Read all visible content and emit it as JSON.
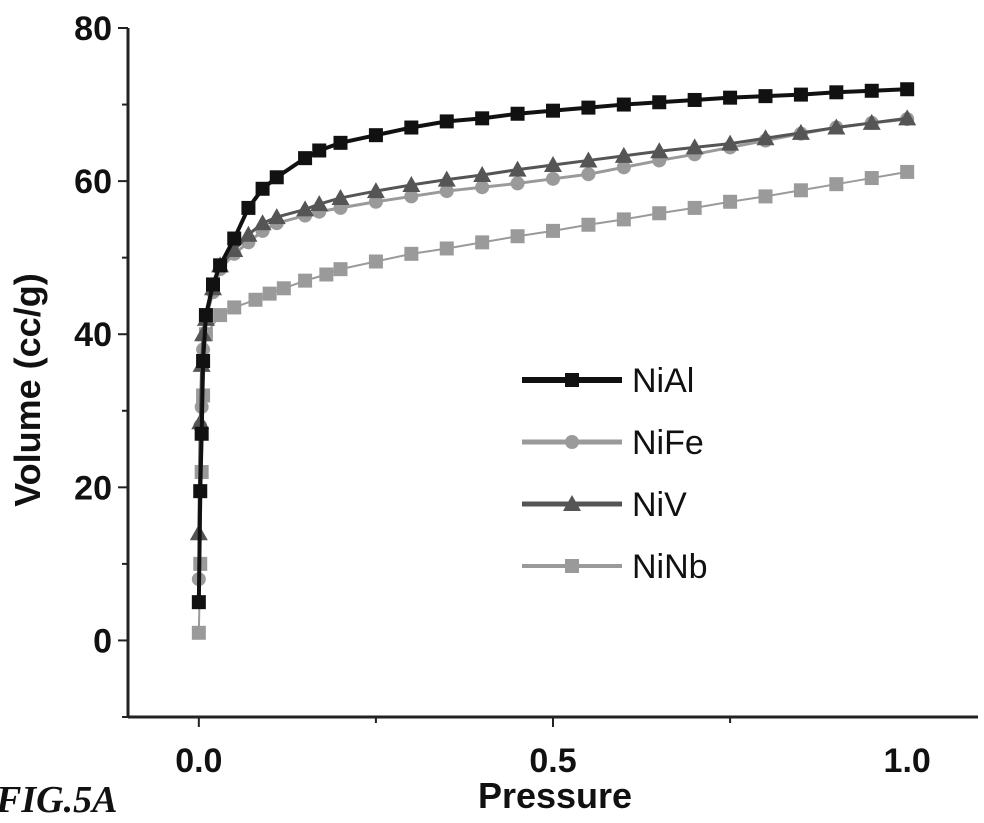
{
  "figure_label": "FIG.5A",
  "chart_data": {
    "type": "line",
    "title": "",
    "xlabel": "Pressure",
    "ylabel": "Volume (cc/g)",
    "xlim": [
      -0.1,
      1.1
    ],
    "ylim": [
      -10,
      80
    ],
    "xticks": [
      0.0,
      0.5,
      1.0
    ],
    "xtick_labels": [
      "0.0",
      "0.5",
      "1.0"
    ],
    "yticks": [
      0,
      20,
      40,
      60,
      80
    ],
    "ytick_labels": [
      "0",
      "20",
      "40",
      "60",
      "80"
    ],
    "grid": false,
    "legend_position": "center-right",
    "series": [
      {
        "name": "NiAl",
        "marker": "square",
        "color": "#111111",
        "line_width": 4,
        "x": [
          0.0,
          0.002,
          0.004,
          0.006,
          0.01,
          0.02,
          0.03,
          0.05,
          0.07,
          0.09,
          0.11,
          0.15,
          0.17,
          0.2,
          0.25,
          0.3,
          0.35,
          0.4,
          0.45,
          0.5,
          0.55,
          0.6,
          0.65,
          0.7,
          0.75,
          0.8,
          0.85,
          0.9,
          0.95,
          1.0
        ],
        "y": [
          5.0,
          19.5,
          27.0,
          36.5,
          42.5,
          46.5,
          49.0,
          52.5,
          56.5,
          59.0,
          60.5,
          63.0,
          64.0,
          65.0,
          66.0,
          67.0,
          67.8,
          68.2,
          68.8,
          69.2,
          69.6,
          70.0,
          70.3,
          70.6,
          70.9,
          71.1,
          71.3,
          71.6,
          71.8,
          72.0
        ]
      },
      {
        "name": "NiFe",
        "marker": "circle",
        "color": "#9a9a9a",
        "line_width": 3,
        "x": [
          0.0,
          0.002,
          0.004,
          0.006,
          0.01,
          0.02,
          0.03,
          0.05,
          0.07,
          0.09,
          0.11,
          0.15,
          0.17,
          0.2,
          0.25,
          0.3,
          0.35,
          0.4,
          0.45,
          0.5,
          0.55,
          0.6,
          0.65,
          0.7,
          0.75,
          0.8,
          0.85,
          0.9,
          0.95,
          1.0
        ],
        "y": [
          8.0,
          28.0,
          30.5,
          38.0,
          42.0,
          45.5,
          48.5,
          50.5,
          52.0,
          53.5,
          54.5,
          55.5,
          56.0,
          56.5,
          57.3,
          58.0,
          58.7,
          59.2,
          59.7,
          60.3,
          60.9,
          61.8,
          62.7,
          63.5,
          64.4,
          65.3,
          66.2,
          67.0,
          67.6,
          68.1
        ]
      },
      {
        "name": "NiV",
        "marker": "triangle",
        "color": "#555555",
        "line_width": 3,
        "x": [
          0.0,
          0.002,
          0.004,
          0.006,
          0.01,
          0.02,
          0.03,
          0.05,
          0.07,
          0.09,
          0.11,
          0.15,
          0.17,
          0.2,
          0.25,
          0.3,
          0.35,
          0.4,
          0.45,
          0.5,
          0.55,
          0.6,
          0.65,
          0.7,
          0.75,
          0.8,
          0.85,
          0.9,
          0.95,
          1.0
        ],
        "y": [
          14.0,
          28.5,
          36.0,
          40.0,
          42.0,
          46.0,
          49.0,
          51.0,
          53.0,
          54.5,
          55.3,
          56.3,
          57.0,
          57.8,
          58.7,
          59.5,
          60.2,
          60.8,
          61.5,
          62.1,
          62.7,
          63.3,
          63.9,
          64.4,
          64.9,
          65.6,
          66.3,
          67.0,
          67.6,
          68.2
        ]
      },
      {
        "name": "NiNb",
        "marker": "square",
        "color": "#9a9a9a",
        "line_width": 2,
        "x": [
          0.0,
          0.002,
          0.004,
          0.006,
          0.01,
          0.03,
          0.05,
          0.08,
          0.1,
          0.12,
          0.15,
          0.18,
          0.2,
          0.25,
          0.3,
          0.35,
          0.4,
          0.45,
          0.5,
          0.55,
          0.6,
          0.65,
          0.7,
          0.75,
          0.8,
          0.85,
          0.9,
          0.95,
          1.0
        ],
        "y": [
          1.0,
          10.0,
          22.0,
          32.0,
          40.0,
          42.5,
          43.5,
          44.5,
          45.3,
          46.0,
          47.0,
          47.8,
          48.5,
          49.5,
          50.5,
          51.2,
          52.0,
          52.8,
          53.5,
          54.3,
          55.0,
          55.8,
          56.5,
          57.3,
          58.0,
          58.8,
          59.6,
          60.4,
          61.2
        ]
      }
    ]
  }
}
